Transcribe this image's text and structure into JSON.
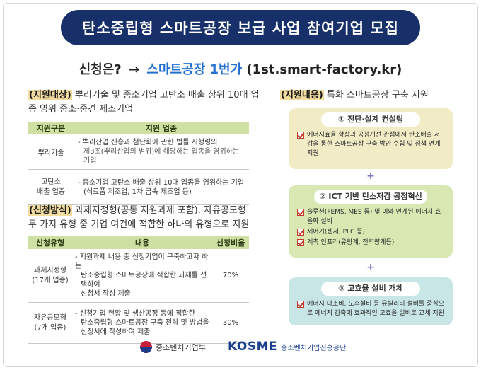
{
  "banner": {
    "title": "탄소중립형 스마트공장 보급 사업 참여기업 모집"
  },
  "apply": {
    "label": "신청은?",
    "arrow": "→",
    "link_text": "스마트공장 1번가",
    "url_text": "(1st.smart-factory.kr)"
  },
  "support_target": {
    "tag": "(지원대상)",
    "text": " 뿌리기술 및 중소기업 고탄소 배출 상위 10대 업종 영위 중소·중견 제조기업",
    "headers": [
      "지원구분",
      "지원 업종"
    ],
    "rows": [
      {
        "category": "뿌리기술",
        "line1": "- 뿌리산업 진흥과 첨단화에 관한 법률 시행령의",
        "line2": "제3조(뿌리산업의 범위)에 해당하는 업종을 영위하는 기업"
      },
      {
        "category_1": "고탄소",
        "category_2": "배출 업종",
        "line1": "- 중소기업 고탄소 배출 상위 10대 업종을 영위하는 기업",
        "line2": "(식료품 제조업, 1차 금속 제조업 등)"
      }
    ]
  },
  "apply_method": {
    "tag": "(신청방식)",
    "text": " 과제지정형(공통 지원과제 포함), 자유공모형 두 가지 유형 중 기업 여건에 적합한 하나의 유형으로 지원",
    "headers": [
      "신청유형",
      "내용",
      "선정비율"
    ],
    "rows": [
      {
        "type_1": "과제지정형",
        "type_2": "(17개 업종)",
        "line1": "- 지원과제 내용 중 신청기업이 구축하고자 하는",
        "line2": "탄소중립형 스마트공장에 적합한 과제를 선택하여",
        "line3": "신청서 작성 제출",
        "ratio": "70%"
      },
      {
        "type_1": "자유공모형",
        "type_2": "(7개 업종)",
        "line1": "- 신청기업 현황 및 생산공정 등에 적합한",
        "line2": "탄소중립형 스마트공장 구축 전략 및 방법을",
        "line3": "신청서에 작성하여 제출",
        "ratio": "30%"
      }
    ]
  },
  "support_content": {
    "tag": "(지원내용)",
    "text": " 특화 스마트공장 구축 지원",
    "cards": [
      {
        "title": "① 진단·설계 컨설팅",
        "items": [
          "에너지효율 향상과 공정개선 관점에서 탄소배출 저감을 통한 스마트공장 구축 방안 수립 및 정책 연계 지원"
        ]
      },
      {
        "title": "② ICT 기반 탄소저감 공정혁신",
        "items": [
          "솔루션(FEMS, MES 등) 및 이와 연계된 에너지 효율화 설비",
          "제어기(센서, PLC 등)",
          "계측 인프라(유량계, 전력량계등)"
        ]
      },
      {
        "title": "③ 고효율 설비 개체",
        "items": [
          "에너지 다소비, 노후설비 등 유틸리티 설비를 중심으로 에너지 감축에 효과적인 고효율 설비로 교체 지원"
        ]
      }
    ],
    "plus": "+"
  },
  "footer": {
    "ministry": "중소벤처기업부",
    "kosme_logo": "KOSME",
    "kosme_name": "중소벤처기업진흥공단"
  },
  "colors": {
    "banner": "#17306a",
    "highlight": "#f3dca0",
    "table_header": "#cfe0a3",
    "card1": "#f1ebc6",
    "card2": "#d9e8b3",
    "card3": "#c9e6e6",
    "link": "#1f6fd1"
  },
  "icons": [
    "check-icon",
    "plus-icon",
    "taegeuk-logo-icon"
  ]
}
